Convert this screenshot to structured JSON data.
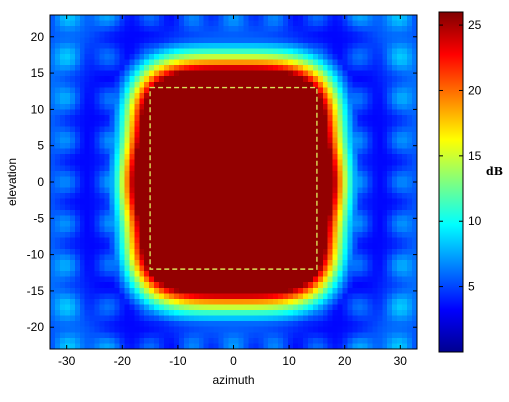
{
  "chart_data": {
    "type": "heatmap",
    "title": "",
    "xlabel": "azimuth",
    "ylabel": "elevation",
    "xlim": [
      -33,
      33
    ],
    "ylim": [
      -23,
      23
    ],
    "xticks": [
      -30,
      -20,
      -10,
      0,
      10,
      20,
      30
    ],
    "yticks": [
      -20,
      -15,
      -10,
      -5,
      0,
      5,
      10,
      15,
      20
    ],
    "colormap": "jet",
    "colorbar": {
      "label": "dB",
      "range": [
        0,
        26
      ],
      "ticks": [
        5,
        10,
        15,
        20,
        25
      ]
    },
    "beam_peaks": {
      "azimuth": [
        -15,
        -10,
        -5,
        0,
        5,
        10,
        15
      ],
      "elevation": [
        -10,
        0,
        10
      ],
      "peak_db": 25
    },
    "dashed_region": {
      "azimuth": [
        -15,
        15
      ],
      "elevation": [
        -12,
        13
      ],
      "color": "#d9e05a"
    },
    "grid": false
  }
}
